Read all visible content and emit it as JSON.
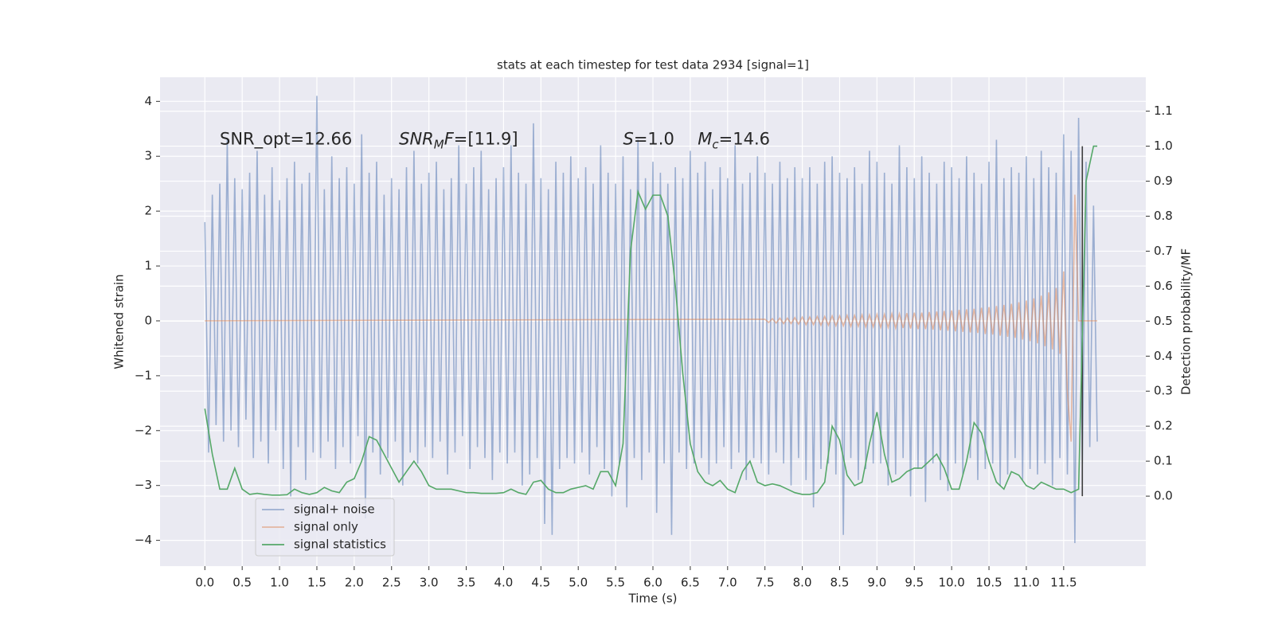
{
  "chart_data": {
    "type": "line",
    "title": "stats at each timestep for test data 2934 [signal=1]",
    "x_label": "Time (s)",
    "y_label": "Whitened strain",
    "y2_label": "Detection probability/MF",
    "xlim": [
      -0.6,
      12.6
    ],
    "ylim": [
      -4.47,
      4.44
    ],
    "y2lim": [
      -0.2,
      1.197
    ],
    "xticks": [
      {
        "value": 0,
        "label": "0.0"
      },
      0.5,
      {
        "value": 1,
        "label": "1.0"
      },
      1.5,
      {
        "value": 2,
        "label": "2.0"
      },
      2.5,
      {
        "value": 3,
        "label": "3.0"
      },
      3.5,
      {
        "value": 4,
        "label": "4.0"
      },
      4.5,
      {
        "value": 5,
        "label": "5.0"
      },
      5.5,
      {
        "value": 6,
        "label": "6.0"
      },
      6.5,
      {
        "value": 7,
        "label": "7.0"
      },
      7.5,
      {
        "value": 8,
        "label": "8.0"
      },
      8.5,
      {
        "value": 9,
        "label": "9.0"
      },
      9.5,
      {
        "value": 10,
        "label": "10.0"
      },
      10.5,
      {
        "value": 11,
        "label": "11.0"
      },
      11.5
    ],
    "yticks": [
      {
        "value": -4,
        "label": "−4"
      },
      {
        "value": -3,
        "label": "−3"
      },
      {
        "value": -2,
        "label": "−2"
      },
      {
        "value": -1,
        "label": "−1"
      },
      0,
      1,
      2,
      3,
      4
    ],
    "y2ticks": [
      {
        "value": 0,
        "label": "0.0"
      },
      0.1,
      0.2,
      0.3,
      0.4,
      0.5,
      0.6,
      0.7,
      0.8,
      0.9,
      {
        "value": 1,
        "label": "1.0"
      },
      1.1
    ],
    "grid": true,
    "legend": "lower left",
    "series": [
      {
        "name": "signal+ noise",
        "color": "#4c72b0",
        "opacity": 0.5,
        "x": [
          0,
          0.05,
          0.1,
          0.15,
          0.2,
          0.25,
          0.3,
          0.35,
          0.4,
          0.45,
          0.5,
          0.55,
          0.6,
          0.65,
          0.7,
          0.75,
          0.8,
          0.85,
          0.9,
          0.95,
          1,
          1.05,
          1.1,
          1.15,
          1.2,
          1.25,
          1.3,
          1.35,
          1.4,
          1.45,
          1.5,
          1.55,
          1.6,
          1.65,
          1.7,
          1.75,
          1.8,
          1.85,
          1.9,
          1.95,
          2,
          2.05,
          2.1,
          2.15,
          2.2,
          2.25,
          2.3,
          2.35,
          2.4,
          2.45,
          2.5,
          2.55,
          2.6,
          2.65,
          2.7,
          2.75,
          2.8,
          2.85,
          2.9,
          2.95,
          3,
          3.05,
          3.1,
          3.15,
          3.2,
          3.25,
          3.3,
          3.35,
          3.4,
          3.45,
          3.5,
          3.55,
          3.6,
          3.65,
          3.7,
          3.75,
          3.8,
          3.85,
          3.9,
          3.95,
          4,
          4.05,
          4.1,
          4.15,
          4.2,
          4.25,
          4.3,
          4.35,
          4.4,
          4.45,
          4.5,
          4.55,
          4.6,
          4.65,
          4.7,
          4.75,
          4.8,
          4.85,
          4.9,
          4.95,
          5,
          5.05,
          5.1,
          5.15,
          5.2,
          5.25,
          5.3,
          5.35,
          5.4,
          5.45,
          5.5,
          5.55,
          5.6,
          5.65,
          5.7,
          5.75,
          5.8,
          5.85,
          5.9,
          5.95,
          6,
          6.05,
          6.1,
          6.15,
          6.2,
          6.25,
          6.3,
          6.35,
          6.4,
          6.45,
          6.5,
          6.55,
          6.6,
          6.65,
          6.7,
          6.75,
          6.8,
          6.85,
          6.9,
          6.95,
          7,
          7.05,
          7.1,
          7.15,
          7.2,
          7.25,
          7.3,
          7.35,
          7.4,
          7.45,
          7.5,
          7.55,
          7.6,
          7.65,
          7.7,
          7.75,
          7.8,
          7.85,
          7.9,
          7.95,
          8,
          8.05,
          8.1,
          8.15,
          8.2,
          8.25,
          8.3,
          8.35,
          8.4,
          8.45,
          8.5,
          8.55,
          8.6,
          8.65,
          8.7,
          8.75,
          8.8,
          8.85,
          8.9,
          8.95,
          9,
          9.05,
          9.1,
          9.15,
          9.2,
          9.25,
          9.3,
          9.35,
          9.4,
          9.45,
          9.5,
          9.55,
          9.6,
          9.65,
          9.7,
          9.75,
          9.8,
          9.85,
          9.9,
          9.95,
          10,
          10.05,
          10.1,
          10.15,
          10.2,
          10.25,
          10.3,
          10.35,
          10.4,
          10.45,
          10.5,
          10.55,
          10.6,
          10.65,
          10.7,
          10.75,
          10.8,
          10.85,
          10.9,
          10.95,
          11,
          11.05,
          11.1,
          11.15,
          11.2,
          11.25,
          11.3,
          11.35,
          11.4,
          11.45,
          11.5,
          11.55,
          11.6,
          11.65,
          11.7,
          11.75,
          11.8,
          11.85,
          11.9,
          11.95
        ],
        "values": [
          1.8,
          -2.4,
          2.3,
          -1.9,
          2.5,
          -2.2,
          3.3,
          -2.0,
          2.6,
          -2.3,
          2.4,
          -1.8,
          2.7,
          -2.5,
          3.1,
          -2.2,
          2.3,
          -2.6,
          2.8,
          -2.0,
          2.2,
          -2.7,
          2.6,
          -3.2,
          2.9,
          -2.3,
          2.5,
          -2.9,
          2.7,
          -2.4,
          4.1,
          -2.5,
          2.4,
          -2.2,
          3.0,
          -2.7,
          2.6,
          -2.3,
          2.8,
          -2.6,
          2.5,
          -2.1,
          3.4,
          -3.6,
          2.7,
          -2.4,
          2.9,
          -2.8,
          2.3,
          -2.5,
          2.6,
          -2.2,
          2.4,
          -3.0,
          2.8,
          -2.4,
          3.1,
          -2.6,
          2.5,
          -2.3,
          2.7,
          -2.5,
          2.9,
          -2.2,
          2.4,
          -2.8,
          2.6,
          -2.4,
          3.2,
          -2.1,
          2.5,
          -2.7,
          2.8,
          -2.3,
          3.1,
          -2.5,
          2.4,
          -2.9,
          2.6,
          -2.4,
          2.8,
          -2.6,
          3.2,
          -2.4,
          2.7,
          -3.0,
          2.5,
          -2.8,
          3.6,
          -2.5,
          2.6,
          -3.7,
          2.4,
          -3.9,
          2.9,
          -2.7,
          2.7,
          -2.5,
          3.0,
          -2.6,
          2.6,
          -2.4,
          2.8,
          -2.8,
          2.5,
          -2.3,
          3.2,
          -2.7,
          2.7,
          -3.2,
          2.5,
          -2.6,
          3.0,
          -3.4,
          2.4,
          -2.5,
          3.3,
          -2.9,
          2.6,
          -2.4,
          2.9,
          -3.5,
          2.7,
          -2.6,
          2.5,
          -3.9,
          2.8,
          -2.4,
          2.6,
          -2.7,
          3.1,
          -2.6,
          2.7,
          -2.5,
          2.9,
          -2.8,
          2.4,
          -2.6,
          2.8,
          -2.3,
          2.6,
          -2.7,
          3.2,
          -2.4,
          2.5,
          -2.9,
          2.7,
          -2.5,
          3.0,
          -2.6,
          2.7,
          -2.8,
          2.5,
          -2.4,
          2.9,
          -2.6,
          2.6,
          -3.0,
          2.8,
          -2.5,
          2.6,
          -2.9,
          2.8,
          -3.4,
          2.5,
          -2.7,
          2.9,
          -2.6,
          3.0,
          -2.8,
          2.7,
          -3.9,
          2.6,
          -2.5,
          2.8,
          -2.9,
          2.5,
          -2.7,
          3.1,
          -2.6,
          2.9,
          -2.6,
          2.7,
          -3.0,
          2.5,
          -2.8,
          3.2,
          -2.5,
          2.8,
          -3.2,
          2.6,
          -2.7,
          3.0,
          -3.3,
          2.7,
          -2.6,
          2.5,
          -2.9,
          2.9,
          -3.1,
          2.8,
          -2.6,
          2.6,
          -2.8,
          3.0,
          -2.5,
          2.7,
          -2.9,
          2.5,
          -2.7,
          2.9,
          -2.6,
          3.3,
          -3.0,
          2.6,
          -2.8,
          2.8,
          -2.5,
          2.7,
          -2.9,
          3.0,
          -2.7,
          2.6,
          -2.8,
          3.1,
          -2.6,
          2.8,
          -3.0,
          2.7,
          -2.5,
          3.4,
          -2.8,
          3.1,
          -4.05,
          3.7,
          -2.6,
          2.9,
          -2.3,
          2.1,
          -2.2
        ]
      },
      {
        "name": "signal only",
        "color": "#dd8452",
        "opacity": 0.5,
        "x": [
          0,
          7.5,
          7.55,
          7.6,
          7.65,
          7.7,
          7.75,
          7.8,
          7.85,
          7.9,
          7.95,
          8,
          8.05,
          8.1,
          8.15,
          8.2,
          8.25,
          8.3,
          8.35,
          8.4,
          8.45,
          8.5,
          8.55,
          8.6,
          8.65,
          8.7,
          8.75,
          8.8,
          8.85,
          8.9,
          8.95,
          9,
          9.05,
          9.1,
          9.15,
          9.2,
          9.25,
          9.3,
          9.35,
          9.4,
          9.45,
          9.5,
          9.55,
          9.6,
          9.65,
          9.7,
          9.75,
          9.8,
          9.85,
          9.9,
          9.95,
          10,
          10.05,
          10.1,
          10.15,
          10.2,
          10.25,
          10.3,
          10.35,
          10.4,
          10.45,
          10.5,
          10.55,
          10.6,
          10.65,
          10.7,
          10.75,
          10.8,
          10.85,
          10.9,
          10.95,
          11,
          11.05,
          11.1,
          11.15,
          11.2,
          11.25,
          11.3,
          11.35,
          11.4,
          11.45,
          11.5,
          11.55,
          11.6,
          11.65,
          11.7,
          11.75,
          11.8,
          11.85,
          11.9,
          11.95
        ],
        "values": [
          0,
          0.03,
          -0.03,
          0.04,
          -0.04,
          0.05,
          -0.05,
          0.05,
          -0.05,
          0.06,
          -0.06,
          0.07,
          -0.07,
          0.07,
          -0.07,
          0.08,
          -0.08,
          0.08,
          -0.08,
          0.09,
          -0.09,
          0.09,
          -0.09,
          0.1,
          -0.1,
          0.1,
          -0.1,
          0.11,
          -0.11,
          0.11,
          -0.11,
          0.12,
          -0.12,
          0.12,
          -0.12,
          0.13,
          -0.13,
          0.13,
          -0.13,
          0.14,
          -0.14,
          0.15,
          -0.15,
          0.15,
          -0.15,
          0.16,
          -0.16,
          0.17,
          -0.17,
          0.18,
          -0.18,
          0.19,
          -0.19,
          0.2,
          -0.2,
          0.21,
          -0.21,
          0.22,
          -0.22,
          0.24,
          -0.24,
          0.25,
          -0.25,
          0.27,
          -0.27,
          0.29,
          -0.29,
          0.31,
          -0.31,
          0.34,
          -0.34,
          0.37,
          -0.37,
          0.41,
          -0.41,
          0.46,
          -0.46,
          0.52,
          -0.52,
          0.6,
          -0.6,
          0.9,
          -1.3,
          -2.2,
          2.3,
          0,
          0,
          0,
          0,
          0,
          0
        ]
      },
      {
        "name": "signal statistics",
        "color": "#55a868",
        "axis": "y2",
        "x": [
          0,
          0.1,
          0.2,
          0.3,
          0.4,
          0.5,
          0.6,
          0.7,
          0.8,
          0.9,
          1,
          1.1,
          1.2,
          1.3,
          1.4,
          1.5,
          1.6,
          1.7,
          1.8,
          1.9,
          2,
          2.1,
          2.2,
          2.3,
          2.4,
          2.5,
          2.6,
          2.7,
          2.8,
          2.9,
          3,
          3.1,
          3.2,
          3.3,
          3.4,
          3.5,
          3.6,
          3.7,
          3.8,
          3.9,
          4,
          4.1,
          4.2,
          4.3,
          4.4,
          4.5,
          4.6,
          4.7,
          4.8,
          4.9,
          5,
          5.1,
          5.2,
          5.3,
          5.4,
          5.5,
          5.6,
          5.7,
          5.8,
          5.9,
          6,
          6.1,
          6.2,
          6.3,
          6.4,
          6.5,
          6.6,
          6.7,
          6.8,
          6.9,
          7,
          7.1,
          7.2,
          7.3,
          7.4,
          7.5,
          7.6,
          7.7,
          7.8,
          7.9,
          8,
          8.1,
          8.2,
          8.3,
          8.4,
          8.5,
          8.6,
          8.7,
          8.8,
          8.9,
          9,
          9.1,
          9.2,
          9.3,
          9.4,
          9.5,
          9.6,
          9.7,
          9.8,
          9.9,
          10,
          10.1,
          10.2,
          10.3,
          10.4,
          10.5,
          10.6,
          10.7,
          10.8,
          10.9,
          11,
          11.1,
          11.2,
          11.3,
          11.4,
          11.5,
          11.6,
          11.7,
          11.8,
          11.9,
          11.95
        ],
        "values": [
          0.25,
          0.12,
          0.02,
          0.02,
          0.08,
          0.02,
          0.005,
          0.008,
          0.005,
          0.003,
          0.003,
          0.004,
          0.02,
          0.01,
          0.005,
          0.01,
          0.025,
          0.015,
          0.01,
          0.04,
          0.05,
          0.1,
          0.17,
          0.16,
          0.12,
          0.08,
          0.04,
          0.07,
          0.1,
          0.07,
          0.03,
          0.02,
          0.02,
          0.02,
          0.015,
          0.01,
          0.01,
          0.008,
          0.008,
          0.008,
          0.01,
          0.02,
          0.01,
          0.005,
          0.04,
          0.045,
          0.02,
          0.01,
          0.01,
          0.02,
          0.025,
          0.03,
          0.02,
          0.07,
          0.07,
          0.03,
          0.15,
          0.7,
          0.87,
          0.82,
          0.86,
          0.86,
          0.8,
          0.6,
          0.35,
          0.15,
          0.07,
          0.04,
          0.03,
          0.045,
          0.02,
          0.01,
          0.07,
          0.1,
          0.04,
          0.03,
          0.035,
          0.03,
          0.02,
          0.01,
          0.005,
          0.005,
          0.01,
          0.04,
          0.2,
          0.16,
          0.06,
          0.03,
          0.04,
          0.15,
          0.24,
          0.12,
          0.04,
          0.05,
          0.07,
          0.08,
          0.08,
          0.1,
          0.12,
          0.08,
          0.02,
          0.02,
          0.1,
          0.21,
          0.18,
          0.1,
          0.04,
          0.02,
          0.07,
          0.06,
          0.03,
          0.02,
          0.04,
          0.03,
          0.02,
          0.02,
          0.01,
          0.02,
          0.9,
          1.0,
          1.0
        ]
      }
    ],
    "vline": {
      "x": 11.75,
      "y2": [
        0,
        1
      ],
      "color": "#3d3d3d"
    },
    "annotations": [
      {
        "x": 0.2,
        "y": 3.3,
        "parts": [
          {
            "text": "SNR_opt=12.66"
          }
        ]
      },
      {
        "x": 2.6,
        "y": 3.3,
        "parts": [
          {
            "text": "SNR",
            "italic": true
          },
          {
            "text": "M",
            "italic": true,
            "sub": true
          },
          {
            "text": "F",
            "italic": true
          },
          {
            "text": "=[11.9]"
          }
        ]
      },
      {
        "x": 5.6,
        "y": 3.3,
        "parts": [
          {
            "text": "S",
            "italic": true
          },
          {
            "text": "=1.0"
          }
        ]
      },
      {
        "x": 6.6,
        "y": 3.3,
        "parts": [
          {
            "text": "M",
            "italic": true
          },
          {
            "text": "c",
            "italic": true,
            "sub": true
          },
          {
            "text": "=14.6"
          }
        ]
      }
    ]
  }
}
